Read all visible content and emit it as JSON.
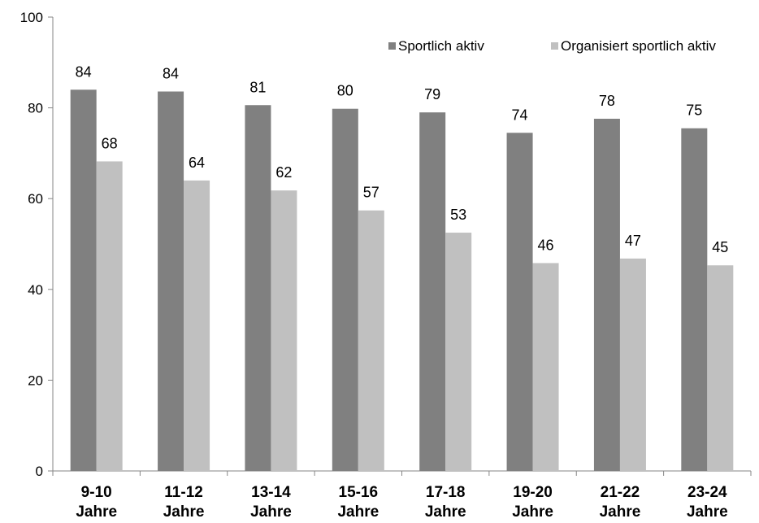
{
  "chart_data": {
    "type": "bar",
    "categories": [
      [
        "9-10",
        "Jahre"
      ],
      [
        "11-12",
        "Jahre"
      ],
      [
        "13-14",
        "Jahre"
      ],
      [
        "15-16",
        "Jahre"
      ],
      [
        "17-18",
        "Jahre"
      ],
      [
        "19-20",
        "Jahre"
      ],
      [
        "21-22",
        "Jahre"
      ],
      [
        "23-24",
        "Jahre"
      ]
    ],
    "series": [
      {
        "name": "Sportlich aktiv",
        "color": "#808080",
        "values": [
          84,
          83.6,
          80.6,
          79.8,
          79,
          74.5,
          77.6,
          75.5
        ],
        "labels": [
          "84",
          "84",
          "81",
          "80",
          "79",
          "74",
          "78",
          "75"
        ]
      },
      {
        "name": "Organisiert sportlich aktiv",
        "color": "#c0c0c0",
        "values": [
          68.2,
          64,
          61.8,
          57.4,
          52.5,
          45.8,
          46.8,
          45.3
        ],
        "labels": [
          "68",
          "64",
          "62",
          "57",
          "53",
          "46",
          "47",
          "45"
        ]
      }
    ],
    "ylim": [
      0,
      100
    ],
    "yticks": [
      "0",
      "20",
      "40",
      "60",
      "80",
      "100"
    ],
    "legend": "top-right",
    "grid": false
  }
}
